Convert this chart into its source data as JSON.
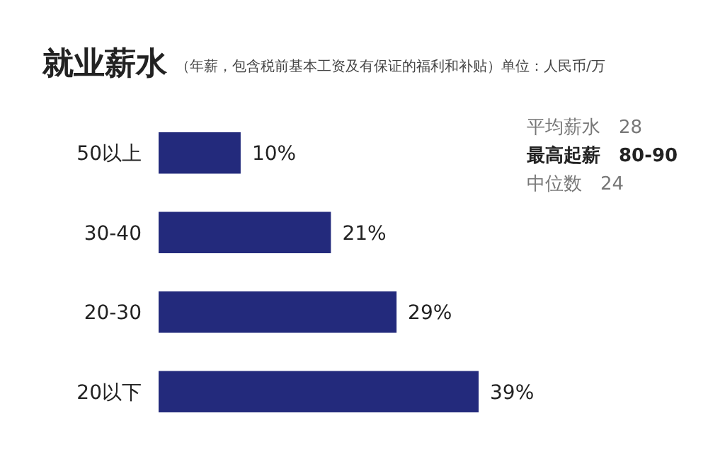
{
  "chart_data": {
    "type": "bar",
    "orientation": "horizontal",
    "title": "就业薪水",
    "subtitle": "（年薪，包含税前基本工资及有保证的福利和补贴）单位：人民币/万",
    "categories": [
      "50以上",
      "30-40",
      "20-30",
      "20以下"
    ],
    "values": [
      10,
      21,
      29,
      39
    ],
    "value_labels": [
      "10%",
      "21%",
      "29%",
      "39%"
    ],
    "color": "#232a7c",
    "annotations": [
      "平均薪水　28",
      "最高起薪　80-90",
      "中位数　24"
    ]
  }
}
